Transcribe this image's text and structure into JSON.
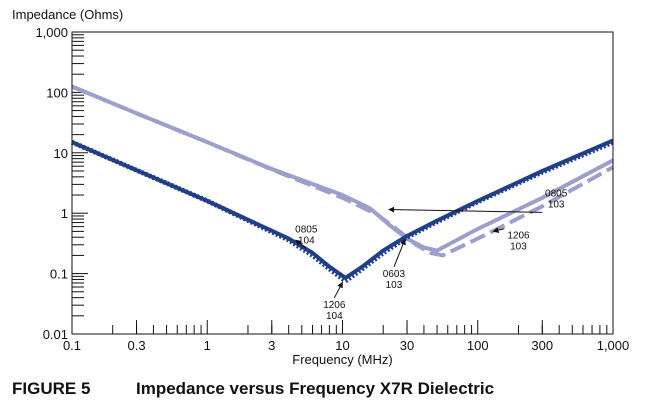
{
  "figure": {
    "number": "FIGURE 5",
    "caption": "Impedance versus Frequency X7R Dielectric"
  },
  "colors": {
    "dark": "#1f3f8a",
    "light": "#9c9fcc",
    "axis": "#111111"
  },
  "chart_data": {
    "type": "line",
    "title": "",
    "xlabel": "Frequency (MHz)",
    "ylabel": "Impedance (Ohms)",
    "xscale": "log",
    "yscale": "log",
    "xlim": [
      0.1,
      1000
    ],
    "ylim": [
      0.01,
      1000
    ],
    "x_ticks": [
      {
        "value": 0.1,
        "label": "0.1"
      },
      {
        "value": 0.3,
        "label": "0.3"
      },
      {
        "value": 1,
        "label": "1"
      },
      {
        "value": 3,
        "label": "3"
      },
      {
        "value": 10,
        "label": "10"
      },
      {
        "value": 30,
        "label": "30"
      },
      {
        "value": 100,
        "label": "100"
      },
      {
        "value": 300,
        "label": "300"
      },
      {
        "value": 1000,
        "label": "1,000"
      }
    ],
    "y_ticks": [
      {
        "value": 0.01,
        "label": "0.01"
      },
      {
        "value": 0.1,
        "label": "0.1"
      },
      {
        "value": 1,
        "label": "1"
      },
      {
        "value": 10,
        "label": "10"
      },
      {
        "value": 100,
        "label": "100"
      },
      {
        "value": 1000,
        "label": "1,000"
      }
    ],
    "grid": false,
    "series": [
      {
        "id": "0805-103",
        "color": "light",
        "dash": "solid",
        "x": [
          0.1,
          0.3,
          1,
          3,
          10,
          16,
          22,
          30,
          40,
          50,
          100,
          300,
          1000
        ],
        "y": [
          125,
          45,
          15,
          5.4,
          2.0,
          1.2,
          0.65,
          0.38,
          0.27,
          0.24,
          0.55,
          1.8,
          7.5
        ]
      },
      {
        "id": "1206-103",
        "color": "light",
        "dash": "dashed",
        "x": [
          0.1,
          0.3,
          1,
          3,
          10,
          18,
          25,
          35,
          45,
          55,
          100,
          300,
          1000
        ],
        "y": [
          125,
          45,
          15,
          5.3,
          1.8,
          0.95,
          0.55,
          0.3,
          0.22,
          0.2,
          0.38,
          1.3,
          5.8
        ]
      },
      {
        "id": "0603-103",
        "color": "dark",
        "dash": "solid",
        "x": [
          0.1,
          1,
          4,
          6,
          8,
          10.5,
          14,
          20,
          30,
          50,
          100,
          300,
          1000
        ],
        "y": [
          15,
          1.6,
          0.38,
          0.22,
          0.13,
          0.085,
          0.13,
          0.24,
          0.42,
          0.75,
          1.6,
          5.0,
          16
        ]
      },
      {
        "id": "1206-104",
        "color": "dark",
        "dash": "dotted",
        "x": [
          0.1,
          1,
          4,
          6,
          8,
          10.5,
          14,
          20,
          30,
          50,
          100,
          300,
          1000
        ],
        "y": [
          15,
          1.6,
          0.36,
          0.2,
          0.12,
          0.075,
          0.12,
          0.22,
          0.4,
          0.72,
          1.55,
          4.8,
          15
        ]
      }
    ],
    "annotations": [
      {
        "id": "ann-0805-103",
        "lines": [
          "0805",
          "103"
        ],
        "text_x": 380,
        "text_y": 1.9,
        "arrow_to_x": 22,
        "arrow_to_y": 1.15
      },
      {
        "id": "ann-0805-104",
        "lines": [
          "0805",
          "104"
        ],
        "text_x": 5.4,
        "text_y": 0.48,
        "arrow_to_x": 4.5,
        "arrow_to_y": 0.36
      },
      {
        "id": "ann-0603-103",
        "lines": [
          "0603",
          "103"
        ],
        "text_x": 24,
        "text_y": 0.088,
        "arrow_to_x": 29,
        "arrow_to_y": 0.37
      },
      {
        "id": "ann-1206-104",
        "lines": [
          "1206",
          "104"
        ],
        "text_x": 8.7,
        "text_y": 0.027,
        "arrow_to_x": 10,
        "arrow_to_y": 0.072
      },
      {
        "id": "ann-1206-103",
        "lines": [
          "1206",
          "103"
        ],
        "text_x": 200,
        "text_y": 0.38,
        "arrow_to_x": 130,
        "arrow_to_y": 0.5
      }
    ]
  }
}
